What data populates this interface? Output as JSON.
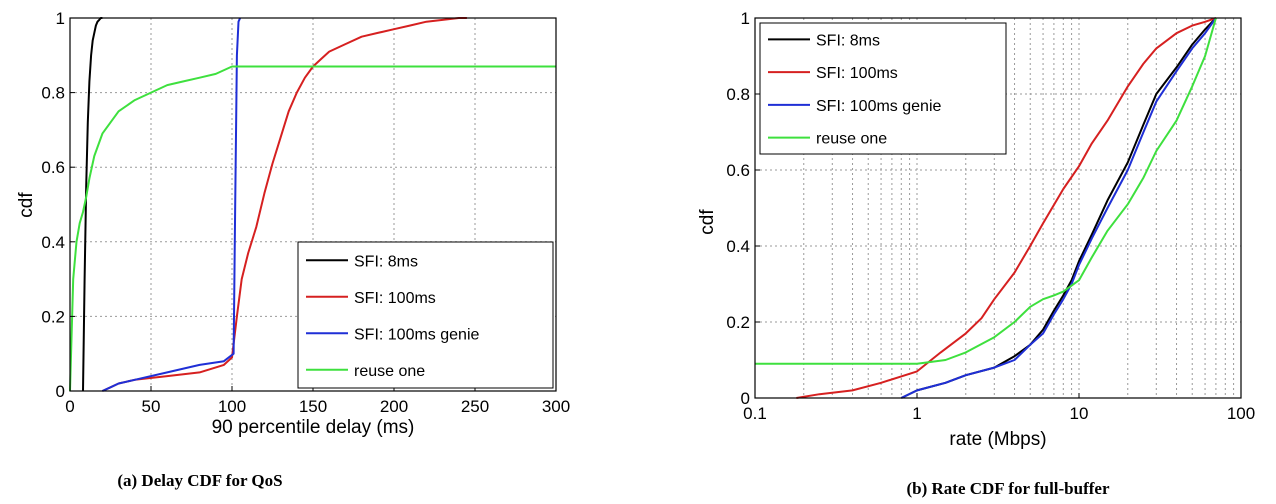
{
  "chart_data": [
    {
      "type": "line",
      "xlabel": "90 percentile delay (ms)",
      "ylabel": "cdf",
      "xlim": [
        0,
        300
      ],
      "ylim": [
        0,
        1
      ],
      "xscale": "linear",
      "xticks": [
        0,
        50,
        100,
        150,
        200,
        250,
        300
      ],
      "yticks": [
        0,
        0.2,
        0.4,
        0.6,
        0.8,
        1
      ],
      "xtick_labels": [
        "0",
        "50",
        "100",
        "150",
        "200",
        "250",
        "300"
      ],
      "ytick_labels": [
        "0",
        "0.2",
        "0.4",
        "0.6",
        "0.8",
        "1"
      ],
      "grid": true,
      "legend_position": "bottom-right",
      "caption": "(a) Delay CDF for QoS",
      "series": [
        {
          "name": "SFI: 8ms",
          "color": "#000000",
          "x": [
            8,
            9,
            10,
            11,
            12,
            13,
            14,
            15,
            16,
            17,
            18,
            19,
            20
          ],
          "y": [
            0,
            0.3,
            0.55,
            0.72,
            0.83,
            0.9,
            0.94,
            0.96,
            0.98,
            0.99,
            0.995,
            1,
            1
          ]
        },
        {
          "name": "SFI: 100ms",
          "color": "#d62020",
          "x": [
            20,
            25,
            30,
            40,
            60,
            80,
            95,
            100,
            103,
            106,
            110,
            115,
            120,
            125,
            130,
            135,
            140,
            145,
            150,
            155,
            160,
            170,
            180,
            190,
            200,
            210,
            220,
            230,
            240,
            245
          ],
          "y": [
            0,
            0.01,
            0.02,
            0.03,
            0.04,
            0.05,
            0.07,
            0.09,
            0.2,
            0.3,
            0.37,
            0.44,
            0.53,
            0.61,
            0.68,
            0.75,
            0.8,
            0.84,
            0.87,
            0.89,
            0.91,
            0.93,
            0.95,
            0.96,
            0.97,
            0.98,
            0.99,
            0.995,
            1,
            1
          ]
        },
        {
          "name": "SFI: 100ms genie",
          "color": "#1f2fd6",
          "x": [
            20,
            25,
            30,
            40,
            60,
            80,
            95,
            101,
            102,
            103,
            104,
            105
          ],
          "y": [
            0,
            0.01,
            0.02,
            0.03,
            0.05,
            0.07,
            0.08,
            0.1,
            0.5,
            0.9,
            0.99,
            1
          ]
        },
        {
          "name": "reuse one",
          "color": "#3ee03e",
          "x": [
            0,
            1,
            2,
            4,
            6,
            8,
            10,
            12,
            15,
            20,
            25,
            30,
            40,
            50,
            60,
            70,
            80,
            90,
            100,
            150,
            200,
            250,
            300
          ],
          "y": [
            0,
            0.15,
            0.3,
            0.4,
            0.45,
            0.48,
            0.52,
            0.57,
            0.63,
            0.69,
            0.72,
            0.75,
            0.78,
            0.8,
            0.82,
            0.83,
            0.84,
            0.85,
            0.87,
            0.87,
            0.87,
            0.87,
            0.87
          ]
        }
      ]
    },
    {
      "type": "line",
      "xlabel": "rate (Mbps)",
      "ylabel": "cdf",
      "xlim": [
        0.1,
        100
      ],
      "ylim": [
        0,
        1
      ],
      "xscale": "log",
      "xticks": [
        0.1,
        1,
        10,
        100
      ],
      "yticks": [
        0,
        0.2,
        0.4,
        0.6,
        0.8,
        1
      ],
      "xtick_labels": [
        "0.1",
        "1",
        "10",
        "100"
      ],
      "ytick_labels": [
        "0",
        "0.2",
        "0.4",
        "0.6",
        "0.8",
        "1"
      ],
      "grid": true,
      "legend_position": "top-left",
      "caption": "(b) Rate CDF for full-buffer",
      "series": [
        {
          "name": "SFI: 8ms",
          "color": "#000000",
          "x": [
            0.8,
            1,
            1.5,
            2,
            3,
            4,
            5,
            6,
            7,
            8,
            9,
            10,
            12,
            15,
            20,
            25,
            30,
            40,
            50,
            60,
            70
          ],
          "y": [
            0,
            0.02,
            0.04,
            0.06,
            0.08,
            0.11,
            0.14,
            0.18,
            0.23,
            0.27,
            0.31,
            0.36,
            0.43,
            0.52,
            0.62,
            0.72,
            0.8,
            0.87,
            0.93,
            0.97,
            1
          ]
        },
        {
          "name": "SFI: 100ms",
          "color": "#d62020",
          "x": [
            0.18,
            0.25,
            0.4,
            0.6,
            1,
            1.4,
            2,
            2.5,
            3,
            4,
            5,
            6,
            8,
            10,
            12,
            15,
            20,
            25,
            30,
            40,
            50,
            60,
            70
          ],
          "y": [
            0,
            0.01,
            0.02,
            0.04,
            0.07,
            0.12,
            0.17,
            0.21,
            0.26,
            0.33,
            0.4,
            0.46,
            0.55,
            0.61,
            0.67,
            0.73,
            0.82,
            0.88,
            0.92,
            0.96,
            0.98,
            0.99,
            1
          ]
        },
        {
          "name": "SFI: 100ms genie",
          "color": "#1f2fd6",
          "x": [
            0.8,
            1,
            1.5,
            2,
            3,
            4,
            5,
            6,
            7,
            8,
            9,
            10,
            12,
            15,
            20,
            25,
            30,
            40,
            50,
            60,
            70
          ],
          "y": [
            0,
            0.02,
            0.04,
            0.06,
            0.08,
            0.1,
            0.14,
            0.17,
            0.22,
            0.26,
            0.3,
            0.35,
            0.42,
            0.5,
            0.6,
            0.7,
            0.78,
            0.86,
            0.92,
            0.96,
            1
          ]
        },
        {
          "name": "reuse one",
          "color": "#3ee03e",
          "x": [
            0.1,
            0.5,
            1,
            1.5,
            2,
            3,
            4,
            5,
            6,
            7,
            8,
            10,
            12,
            15,
            20,
            25,
            30,
            40,
            50,
            60,
            70
          ],
          "y": [
            0.09,
            0.09,
            0.09,
            0.1,
            0.12,
            0.16,
            0.2,
            0.24,
            0.26,
            0.27,
            0.28,
            0.31,
            0.37,
            0.44,
            0.51,
            0.58,
            0.65,
            0.73,
            0.82,
            0.9,
            1
          ]
        }
      ]
    }
  ]
}
